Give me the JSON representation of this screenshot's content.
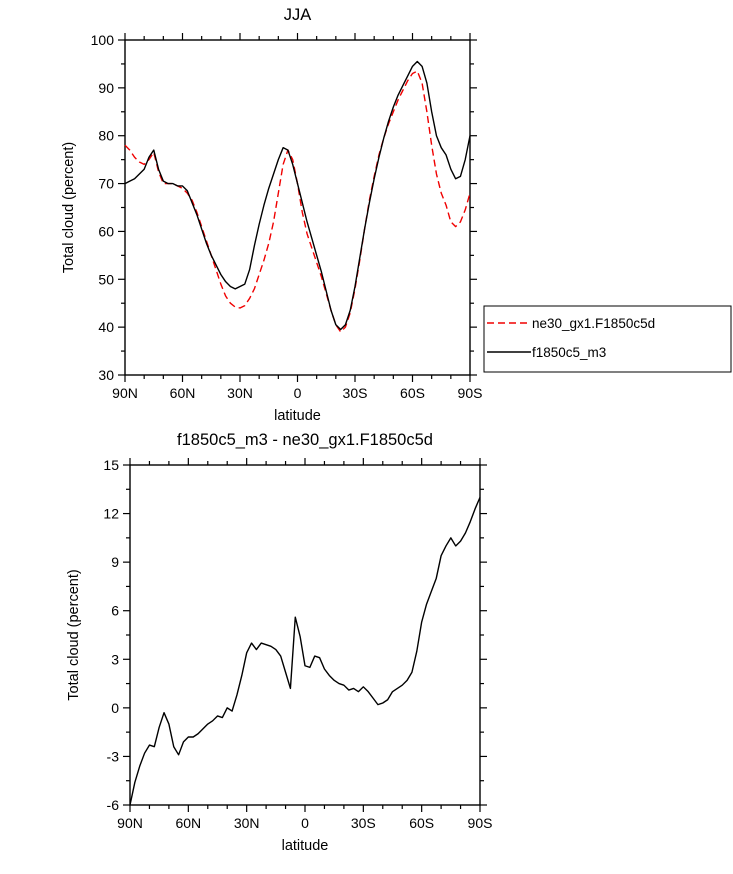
{
  "page": {
    "background": "#ffffff"
  },
  "chart_data": [
    {
      "type": "line",
      "title": "JJA",
      "xlabel": "latitude",
      "ylabel": "Total cloud (percent)",
      "xlim": [
        90,
        -90
      ],
      "ylim": [
        30,
        100
      ],
      "x_ticks": {
        "values": [
          90,
          60,
          30,
          0,
          -30,
          -60,
          -90
        ],
        "labels": [
          "90N",
          "60N",
          "30N",
          "0",
          "30S",
          "60S",
          "90S"
        ]
      },
      "y_tick_step": 10,
      "x_minor_step": 10,
      "y_minor_step": 5,
      "grid": false,
      "show_legend": true,
      "legend_position": "outside-right-bottom",
      "x": [
        90,
        87.5,
        85,
        82.5,
        80,
        77.5,
        75,
        72.5,
        70,
        67.5,
        65,
        62.5,
        60,
        57.5,
        55,
        52.5,
        50,
        47.5,
        45,
        42.5,
        40,
        37.5,
        35,
        32.5,
        30,
        27.5,
        25,
        22.5,
        20,
        17.5,
        15,
        12.5,
        10,
        7.5,
        5,
        2.5,
        0,
        -2.5,
        -5,
        -7.5,
        -10,
        -12.5,
        -15,
        -17.5,
        -20,
        -22.5,
        -25,
        -27.5,
        -30,
        -32.5,
        -35,
        -37.5,
        -40,
        -42.5,
        -45,
        -47.5,
        -50,
        -52.5,
        -55,
        -57.5,
        -60,
        -62.5,
        -65,
        -67.5,
        -70,
        -72.5,
        -75,
        -77.5,
        -80,
        -82.5,
        -85,
        -87.5,
        -90
      ],
      "series": [
        {
          "name": "ne30_gx1.F1850c5d",
          "color": "#f00000",
          "dashed": true,
          "values": [
            78,
            77,
            75.5,
            74.5,
            74,
            75,
            76.5,
            72.5,
            70,
            70,
            70,
            69.5,
            69,
            68,
            66.5,
            64,
            61,
            58,
            55,
            52,
            49,
            46.5,
            45,
            44.2,
            44,
            44.5,
            46,
            48,
            51,
            54,
            57.5,
            62,
            68,
            74,
            77,
            75,
            70,
            64,
            59.5,
            56.5,
            53.5,
            50.5,
            47,
            43.5,
            40.5,
            39,
            40,
            43,
            48,
            54,
            60.5,
            66.5,
            71.5,
            76,
            79.5,
            82.5,
            85,
            87.5,
            89.5,
            91.5,
            93,
            93.5,
            91,
            85,
            78,
            72,
            68,
            65.5,
            62,
            61,
            62,
            64.5,
            68
          ]
        },
        {
          "name": "f1850c5_m3",
          "color": "#000000",
          "dashed": false,
          "values": [
            70,
            70.5,
            71,
            72,
            73,
            75.5,
            77,
            73,
            70.5,
            70,
            70,
            69.5,
            69.5,
            68.5,
            66,
            63.5,
            60.5,
            57.5,
            55,
            53,
            51,
            49.5,
            48.5,
            48,
            48.5,
            49,
            52,
            57,
            61.5,
            65.5,
            69,
            72,
            75,
            77.5,
            77,
            74,
            70,
            66,
            62,
            58.5,
            55,
            51.5,
            47.5,
            43.5,
            40.5,
            39.5,
            40.5,
            43.5,
            48.5,
            54.5,
            60.5,
            66,
            71,
            75.5,
            79.5,
            83,
            86,
            88.5,
            90.5,
            92.5,
            94.5,
            95.5,
            94.5,
            91,
            85,
            80,
            77.5,
            76,
            73,
            71,
            71.5,
            75,
            80
          ]
        }
      ]
    },
    {
      "type": "line",
      "title": "f1850c5_m3 - ne30_gx1.F1850c5d",
      "xlabel": "latitude",
      "ylabel": "Total cloud (percent)",
      "xlim": [
        90,
        -90
      ],
      "ylim": [
        -6,
        15
      ],
      "x_ticks": {
        "values": [
          90,
          60,
          30,
          0,
          -30,
          -60,
          -90
        ],
        "labels": [
          "90N",
          "60N",
          "30N",
          "0",
          "30S",
          "60S",
          "90S"
        ]
      },
      "y_tick_step": 3,
      "x_minor_step": 10,
      "y_minor_step": 1.5,
      "grid": false,
      "show_legend": false,
      "x": [
        90,
        87.5,
        85,
        82.5,
        80,
        77.5,
        75,
        72.5,
        70,
        67.5,
        65,
        62.5,
        60,
        57.5,
        55,
        52.5,
        50,
        47.5,
        45,
        42.5,
        40,
        37.5,
        35,
        32.5,
        30,
        27.5,
        25,
        22.5,
        20,
        17.5,
        15,
        12.5,
        10,
        7.5,
        5,
        2.5,
        0,
        -2.5,
        -5,
        -7.5,
        -10,
        -12.5,
        -15,
        -17.5,
        -20,
        -22.5,
        -25,
        -27.5,
        -30,
        -32.5,
        -35,
        -37.5,
        -40,
        -42.5,
        -45,
        -47.5,
        -50,
        -52.5,
        -55,
        -57.5,
        -60,
        -62.5,
        -65,
        -67.5,
        -70,
        -72.5,
        -75,
        -77.5,
        -80,
        -82.5,
        -85,
        -87.5,
        -90
      ],
      "series": [
        {
          "name": "f1850c5_m3 - ne30_gx1.F1850c5d",
          "color": "#000000",
          "dashed": false,
          "values": [
            -6,
            -4.6,
            -3.6,
            -2.8,
            -2.3,
            -2.4,
            -1.2,
            -0.3,
            -1,
            -2.4,
            -2.9,
            -2.1,
            -1.8,
            -1.8,
            -1.6,
            -1.3,
            -1,
            -0.8,
            -0.5,
            -0.6,
            0,
            -0.2,
            0.8,
            2,
            3.4,
            4,
            3.6,
            4,
            3.9,
            3.8,
            3.6,
            3.2,
            2.2,
            1.2,
            5.6,
            4.4,
            2.6,
            2.5,
            3.2,
            3.1,
            2.4,
            2,
            1.7,
            1.5,
            1.4,
            1.1,
            1.2,
            1,
            1.3,
            1,
            0.6,
            0.2,
            0.3,
            0.5,
            1,
            1.2,
            1.4,
            1.7,
            2.2,
            3.5,
            5.3,
            6.4,
            7.2,
            8,
            9.4,
            10,
            10.5,
            10,
            10.3,
            10.8,
            11.5,
            12.3,
            13
          ]
        }
      ]
    }
  ]
}
